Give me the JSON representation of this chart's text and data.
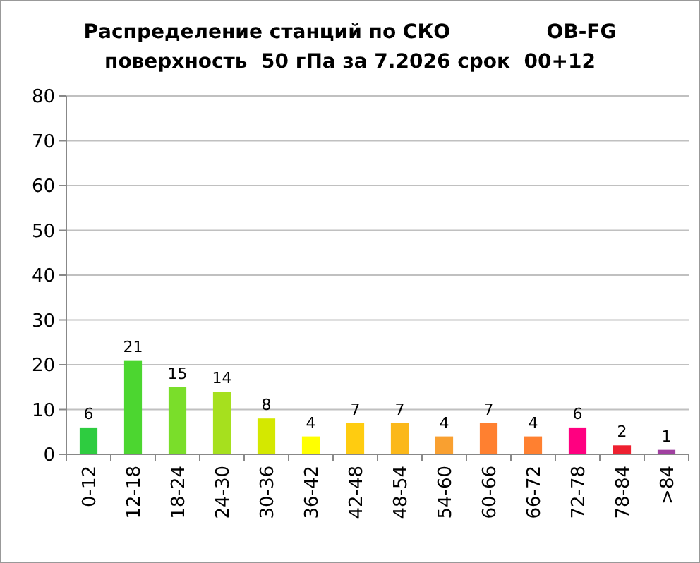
{
  "chart_data": {
    "type": "bar",
    "title": "Распределение станций по СКО              OB-FG",
    "subtitle": "поверхность  50 гПа за 7.2026 срок  00+12",
    "categories": [
      "0-12",
      "12-18",
      "18-24",
      "24-30",
      "30-36",
      "36-42",
      "42-48",
      "48-54",
      "54-60",
      "60-66",
      "66-72",
      "72-78",
      "78-84",
      ">84"
    ],
    "values": [
      6,
      21,
      15,
      14,
      8,
      4,
      7,
      7,
      4,
      7,
      4,
      6,
      2,
      1
    ],
    "colors": [
      "#2ecc40",
      "#4cd630",
      "#7ade2a",
      "#a6e01e",
      "#d4e800",
      "#ffff00",
      "#ffcc10",
      "#fbb81a",
      "#f9a030",
      "#ff8030",
      "#ff8030",
      "#ff0080",
      "#ee2030",
      "#a040a0"
    ],
    "ylim": [
      0,
      80
    ],
    "yticks": [
      0,
      10,
      20,
      30,
      40,
      50,
      60,
      70,
      80
    ],
    "grid": "y",
    "data_labels": true
  }
}
